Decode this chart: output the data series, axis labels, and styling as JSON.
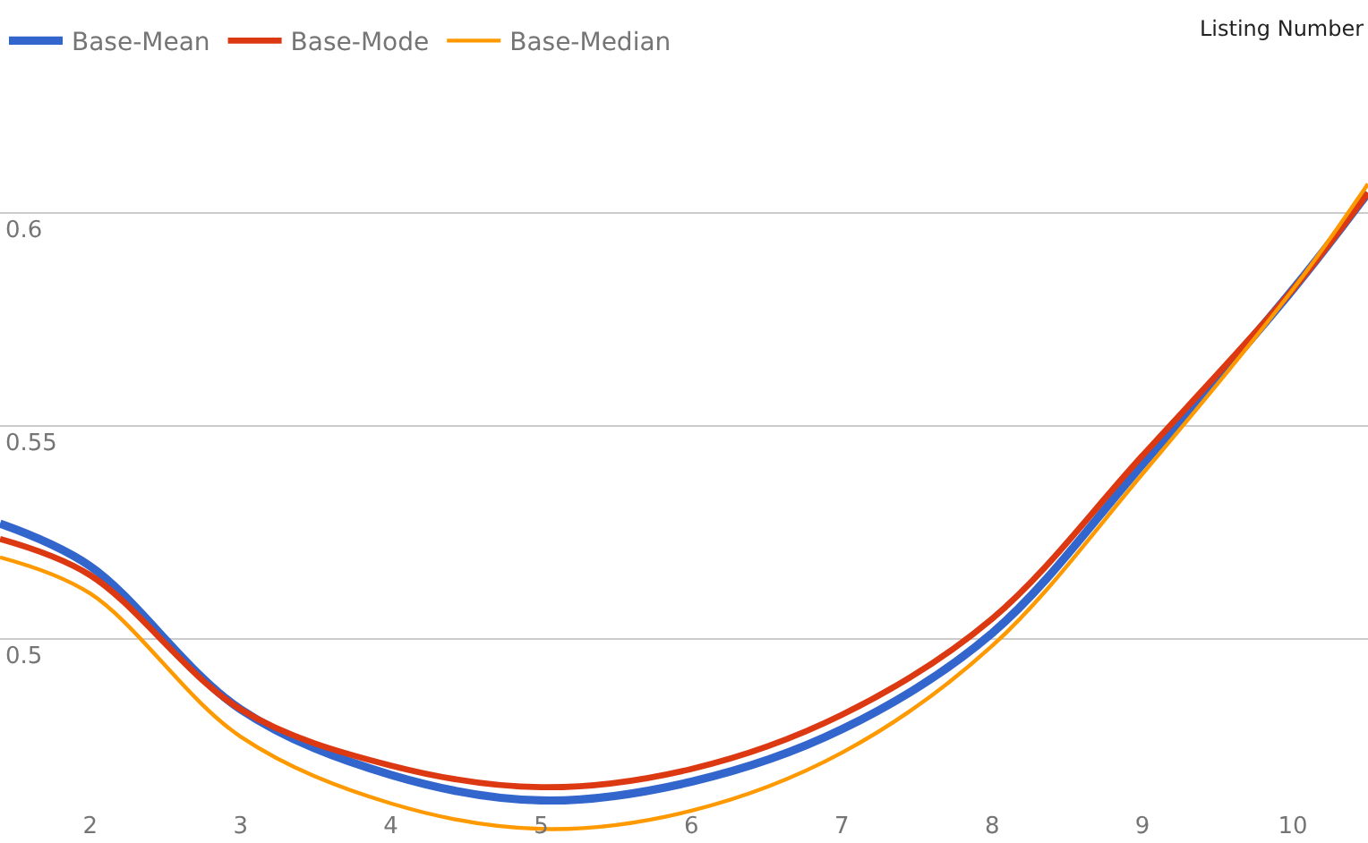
{
  "chart_data": {
    "type": "line",
    "xlabel": "Listing Number",
    "x": [
      1.4,
      2,
      3,
      4,
      5,
      6,
      7,
      8,
      9,
      10,
      10.5
    ],
    "series": [
      {
        "name": "Base-Mean",
        "color": "#3366cc",
        "values": [
          0.527,
          0.517,
          0.4834,
          0.468,
          0.462,
          0.4664,
          0.4787,
          0.5013,
          0.5409,
          0.582,
          0.6047
        ]
      },
      {
        "name": "Base-Mode",
        "color": "#dc3912",
        "values": [
          0.5234,
          0.5149,
          0.4834,
          0.4702,
          0.4651,
          0.4694,
          0.4821,
          0.5047,
          0.543,
          0.582,
          0.6047
        ]
      },
      {
        "name": "Base-Median",
        "color": "#ff9900",
        "values": [
          0.5191,
          0.5106,
          0.477,
          0.4613,
          0.4553,
          0.4596,
          0.4732,
          0.4983,
          0.5387,
          0.582,
          0.6068
        ]
      }
    ],
    "xlim": [
      1.4,
      10.5
    ],
    "xticks": [
      2,
      3,
      4,
      5,
      6,
      7,
      8,
      9,
      10
    ],
    "ylim": [
      0.452,
      0.65
    ],
    "yticks": [
      0.5,
      0.55,
      0.6,
      {
        "value": 0.65,
        "label": null
      }
    ],
    "grid": "y",
    "legend": "top left",
    "marker": "none",
    "line_style": "solid"
  }
}
